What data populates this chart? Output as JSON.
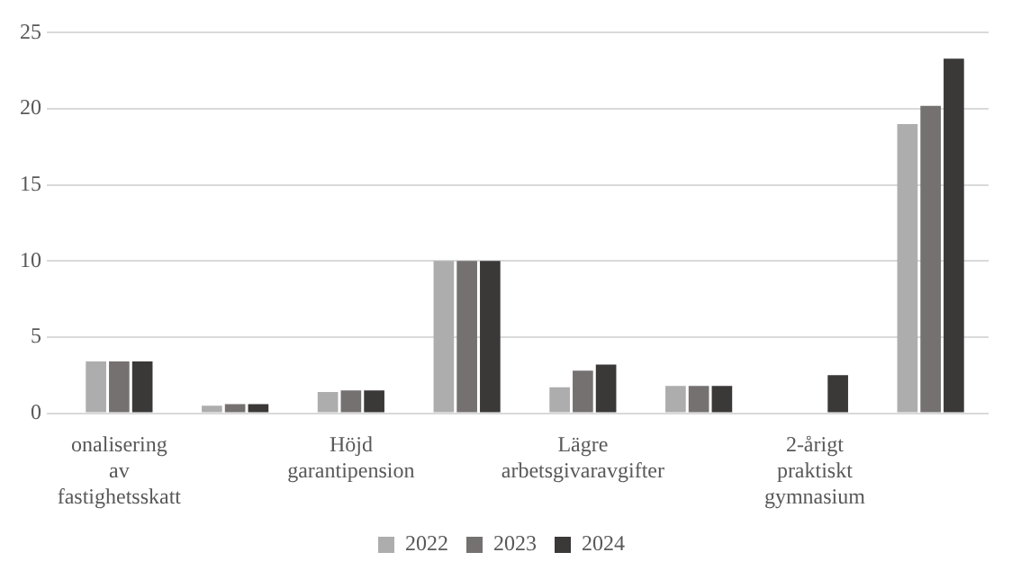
{
  "chart_data": {
    "type": "bar",
    "categories": [
      "onalisering av fastighetsskatt",
      null,
      "Höjd garantipension",
      null,
      "Lägre arbetsgivaravgifter",
      null,
      "2-årigt praktiskt gymnasium",
      null
    ],
    "series": [
      {
        "name": "2022",
        "color": "#adadad",
        "values": [
          3.4,
          0.5,
          1.4,
          10,
          1.7,
          1.8,
          null,
          19.0
        ]
      },
      {
        "name": "2023",
        "color": "#767171",
        "values": [
          3.4,
          0.6,
          1.5,
          10,
          2.8,
          1.8,
          null,
          20.2
        ]
      },
      {
        "name": "2024",
        "color": "#3b3838",
        "values": [
          3.4,
          0.6,
          1.5,
          10,
          3.2,
          1.8,
          2.5,
          23.3
        ]
      }
    ],
    "ylim": [
      0,
      25
    ],
    "yticks": [
      0,
      5,
      10,
      15,
      20,
      25
    ],
    "grid": "y",
    "legend": "bottom"
  }
}
